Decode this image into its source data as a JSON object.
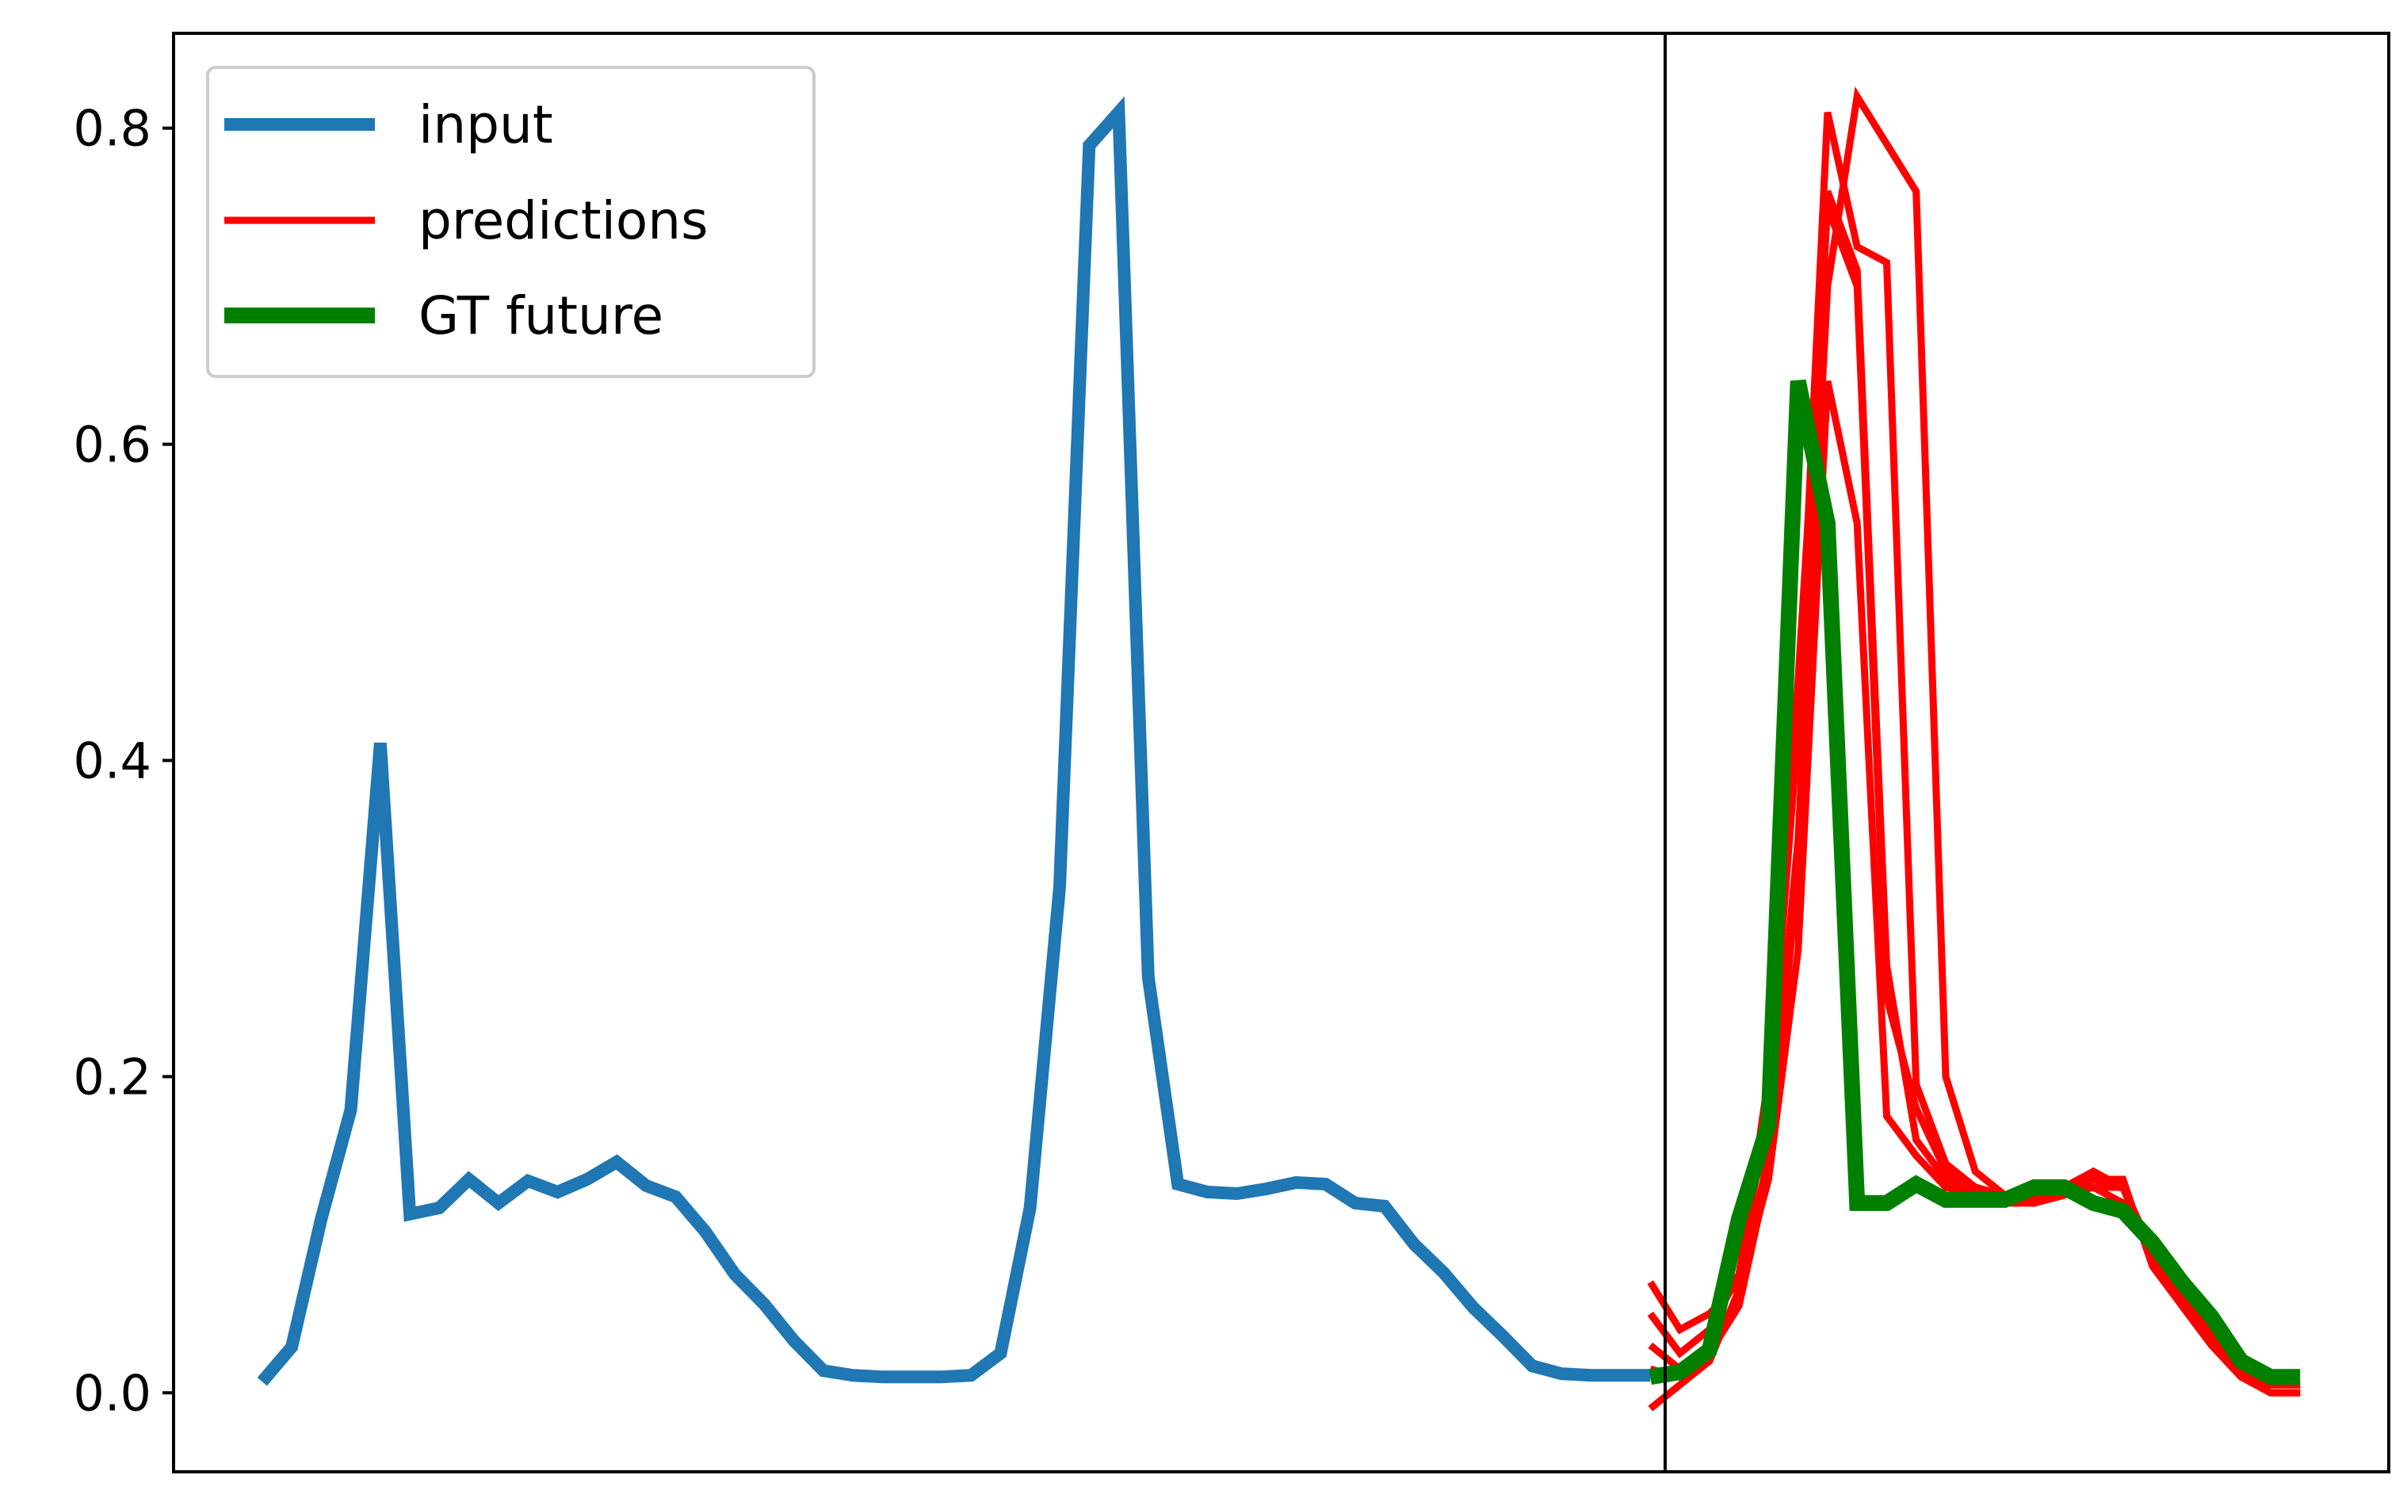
{
  "chart_data": {
    "type": "line",
    "title": "",
    "xlabel": "",
    "ylabel": "",
    "xlim": [
      -3,
      72
    ],
    "ylim": [
      -0.05,
      0.86
    ],
    "grid": false,
    "legend_placement": "top-left",
    "yticks": [
      0.0,
      0.2,
      0.4,
      0.6,
      0.8
    ],
    "ytick_labels": [
      "0.0",
      "0.2",
      "0.4",
      "0.6",
      "0.8"
    ],
    "divider_x": 47.5,
    "series": [
      {
        "name": "input",
        "color": "#1f77b4",
        "role": "input",
        "x": [
          0,
          1,
          2,
          3,
          4,
          5,
          6,
          7,
          8,
          9,
          10,
          11,
          12,
          13,
          14,
          15,
          16,
          17,
          18,
          19,
          20,
          21,
          22,
          23,
          24,
          25,
          26,
          27,
          28,
          29,
          30,
          31,
          32,
          33,
          34,
          35,
          36,
          37,
          38,
          39,
          40,
          41,
          42,
          43,
          44,
          45,
          46,
          47
        ],
        "y": [
          0.007,
          0.029,
          0.11,
          0.179,
          0.411,
          0.113,
          0.117,
          0.135,
          0.12,
          0.134,
          0.127,
          0.135,
          0.146,
          0.131,
          0.124,
          0.102,
          0.075,
          0.056,
          0.033,
          0.014,
          0.011,
          0.01,
          0.01,
          0.01,
          0.011,
          0.025,
          0.117,
          0.32,
          0.789,
          0.81,
          0.263,
          0.132,
          0.127,
          0.126,
          0.129,
          0.133,
          0.132,
          0.12,
          0.118,
          0.094,
          0.076,
          0.054,
          0.036,
          0.017,
          0.012,
          0.011,
          0.011,
          0.011
        ]
      },
      {
        "name": "predictions",
        "color": "#ff0000",
        "role": "prediction",
        "x": [
          47,
          48,
          49,
          50,
          51,
          52,
          53,
          54,
          55,
          56,
          57,
          58,
          59,
          60,
          61,
          62,
          63,
          64,
          65,
          66,
          67,
          68,
          69
        ],
        "y": [
          0.07,
          0.04,
          0.05,
          0.07,
          0.2,
          0.45,
          0.75,
          0.7,
          0.25,
          0.18,
          0.14,
          0.13,
          0.12,
          0.12,
          0.13,
          0.13,
          0.12,
          0.09,
          0.065,
          0.04,
          0.015,
          0.005,
          0.005
        ]
      },
      {
        "name": "",
        "color": "#ff0000",
        "role": "prediction",
        "x": [
          47,
          48,
          49,
          50,
          51,
          52,
          53,
          54,
          55,
          56,
          57,
          58,
          59,
          60,
          61,
          62,
          63,
          64,
          65,
          66,
          67,
          68,
          69
        ],
        "y": [
          0.05,
          0.025,
          0.04,
          0.075,
          0.18,
          0.42,
          0.81,
          0.725,
          0.715,
          0.195,
          0.145,
          0.13,
          0.125,
          0.125,
          0.13,
          0.135,
          0.13,
          0.09,
          0.06,
          0.035,
          0.015,
          0.005,
          0.005
        ]
      },
      {
        "name": "",
        "color": "#ff0000",
        "role": "prediction",
        "x": [
          47,
          48,
          49,
          50,
          51,
          52,
          53,
          54,
          55,
          56,
          57,
          58,
          59,
          60,
          61,
          62,
          63,
          64,
          65,
          66,
          67,
          68,
          69
        ],
        "y": [
          0.03,
          0.015,
          0.03,
          0.06,
          0.15,
          0.35,
          0.7,
          0.82,
          0.79,
          0.76,
          0.2,
          0.14,
          0.125,
          0.12,
          0.125,
          0.13,
          0.13,
          0.085,
          0.055,
          0.03,
          0.01,
          0.0,
          0.0
        ]
      },
      {
        "name": "",
        "color": "#ff0000",
        "role": "prediction",
        "x": [
          47,
          48,
          49,
          50,
          51,
          52,
          53,
          54,
          55,
          56,
          57,
          58,
          59,
          60,
          61,
          62,
          63,
          64,
          65,
          66,
          67,
          68,
          69
        ],
        "y": [
          0.015,
          0.01,
          0.025,
          0.055,
          0.14,
          0.33,
          0.76,
          0.71,
          0.27,
          0.16,
          0.135,
          0.125,
          0.12,
          0.12,
          0.125,
          0.135,
          0.135,
          0.08,
          0.055,
          0.03,
          0.01,
          0.0,
          0.0
        ]
      },
      {
        "name": "",
        "color": "#ff0000",
        "role": "prediction",
        "x": [
          47,
          48,
          49,
          50,
          51,
          52,
          53,
          54,
          55,
          56,
          57,
          58,
          59,
          60,
          61,
          62,
          63,
          64,
          65,
          66,
          67,
          68,
          69
        ],
        "y": [
          -0.01,
          0.005,
          0.02,
          0.065,
          0.135,
          0.28,
          0.64,
          0.55,
          0.175,
          0.15,
          0.13,
          0.125,
          0.12,
          0.125,
          0.13,
          0.14,
          0.13,
          0.085,
          0.06,
          0.035,
          0.01,
          0.0,
          0.0
        ]
      },
      {
        "name": "GT future",
        "color": "#008000",
        "role": "ground-truth",
        "x": [
          47,
          48,
          49,
          50,
          51,
          52,
          53,
          54,
          55,
          56,
          57,
          58,
          59,
          60,
          61,
          62,
          63,
          64,
          65,
          66,
          67,
          68,
          69
        ],
        "y": [
          0.01,
          0.013,
          0.027,
          0.11,
          0.17,
          0.64,
          0.55,
          0.12,
          0.12,
          0.132,
          0.122,
          0.122,
          0.122,
          0.13,
          0.13,
          0.12,
          0.115,
          0.095,
          0.07,
          0.048,
          0.02,
          0.01,
          0.01
        ]
      }
    ]
  }
}
